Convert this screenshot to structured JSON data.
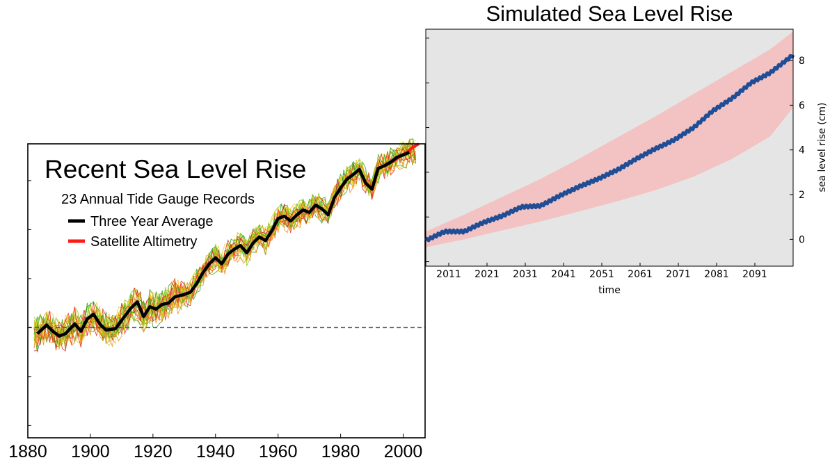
{
  "chart_data": [
    {
      "type": "line",
      "title": "Recent Sea Level Rise",
      "subtitle": "23 Annual Tide Gauge Records",
      "legend_placement": "top-left",
      "xlim": [
        1880,
        2007
      ],
      "ylim": [
        -90,
        150
      ],
      "x_ticks": [
        "1880",
        "1900",
        "1920",
        "1940",
        "1960",
        "1980",
        "2000"
      ],
      "reference_line": 0,
      "colors": {
        "gauges": [
          "#2e9e1f",
          "#7cc617",
          "#d6d81a",
          "#ef8a17",
          "#e3261b",
          "#f3c11d"
        ],
        "average": "#000000",
        "satellite": "#ff1a1a"
      },
      "series": [
        {
          "name": "Three Year Average",
          "x": [
            1883,
            1886,
            1888,
            1890,
            1892,
            1895,
            1897,
            1899,
            1901,
            1903,
            1905,
            1908,
            1910,
            1913,
            1915,
            1917,
            1919,
            1921,
            1923,
            1925,
            1927,
            1930,
            1932,
            1934,
            1936,
            1938,
            1940,
            1942,
            1944,
            1946,
            1948,
            1950,
            1952,
            1954,
            1956,
            1958,
            1960,
            1962,
            1964,
            1966,
            1968,
            1970,
            1972,
            1974,
            1976,
            1978,
            1980,
            1982,
            1984,
            1986,
            1988,
            1990,
            1992,
            1994,
            1996,
            1998,
            2000,
            2002
          ],
          "values": [
            -5,
            2,
            -3,
            -7,
            -5,
            3,
            -3,
            7,
            11,
            3,
            -2,
            -1,
            6,
            16,
            21,
            9,
            17,
            15,
            19,
            20,
            25,
            27,
            29,
            36,
            45,
            52,
            57,
            52,
            60,
            64,
            67,
            61,
            69,
            74,
            71,
            79,
            89,
            91,
            87,
            92,
            96,
            94,
            100,
            97,
            92,
            106,
            114,
            121,
            125,
            129,
            118,
            113,
            130,
            132,
            135,
            139,
            141,
            143
          ]
        },
        {
          "name": "Satellite Altimetry",
          "x": [
            1993,
            1995,
            1997,
            1999,
            2001,
            2003,
            2005
          ],
          "values": [
            131,
            134,
            136,
            140,
            143,
            147,
            150
          ]
        }
      ]
    },
    {
      "type": "line",
      "title": "Simulated Sea Level Rise",
      "xlabel": "time",
      "ylabel": "sea level rise (cm)",
      "xlim": [
        2005,
        2101
      ],
      "ylim": [
        -1.2,
        9.4
      ],
      "y_ticks": [
        0,
        2,
        4,
        6,
        8
      ],
      "x_ticks": [
        "2011",
        "2021",
        "2031",
        "2041",
        "2051",
        "2061",
        "2071",
        "2081",
        "2091"
      ],
      "grid": false,
      "colors": {
        "background": "#e5e5e5",
        "band": "#f3c2c2",
        "line": "#1f4e96"
      },
      "band": {
        "x": [
          2005,
          2015,
          2025,
          2035,
          2045,
          2055,
          2065,
          2075,
          2085,
          2095,
          2101
        ],
        "upper": [
          0.35,
          1.1,
          1.9,
          2.7,
          3.6,
          4.55,
          5.5,
          6.5,
          7.5,
          8.5,
          9.3
        ],
        "lower": [
          -0.35,
          0.0,
          0.4,
          0.8,
          1.25,
          1.7,
          2.2,
          2.8,
          3.6,
          4.6,
          5.9
        ]
      },
      "series": [
        {
          "x": [
            2005,
            2010,
            2015,
            2020,
            2025,
            2030,
            2035,
            2040,
            2045,
            2050,
            2055,
            2060,
            2065,
            2070,
            2075,
            2080,
            2085,
            2090,
            2095,
            2101
          ],
          "values": [
            -0.05,
            0.35,
            0.35,
            0.75,
            1.05,
            1.45,
            1.5,
            1.95,
            2.35,
            2.7,
            3.1,
            3.6,
            4.05,
            4.45,
            5.0,
            5.75,
            6.3,
            7.0,
            7.45,
            8.25
          ]
        }
      ]
    }
  ]
}
